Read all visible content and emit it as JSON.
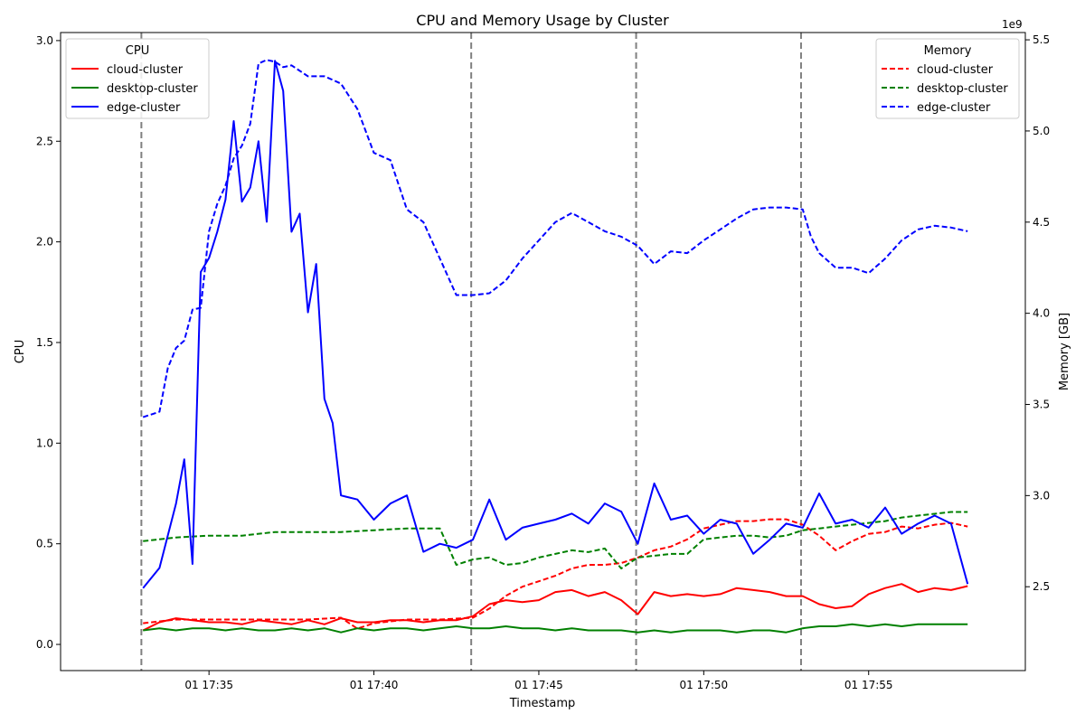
{
  "chart_data": {
    "type": "line",
    "title": "CPU and Memory Usage by Cluster",
    "xlabel": "Timestamp",
    "ylabel": "CPU",
    "y2label": "Memory [GB]",
    "y2_offset_text": "1e9",
    "x_start": "17:33",
    "x_end": "17:58:06",
    "xlim": [
      "17:30:30",
      "17:59:45"
    ],
    "x_ticks": [
      "01 17:35",
      "01 17:40",
      "01 17:45",
      "01 17:50",
      "01 17:55"
    ],
    "x_tick_minutes": [
      35,
      40,
      45,
      50,
      55
    ],
    "ylim": [
      -0.13,
      3.04
    ],
    "y_ticks": [
      0.0,
      0.5,
      1.0,
      1.5,
      2.0,
      2.5,
      3.0
    ],
    "y_tick_labels": [
      "0.0",
      "0.5",
      "1.0",
      "1.5",
      "2.0",
      "2.5",
      "3.0"
    ],
    "y2lim": [
      2.04,
      5.54
    ],
    "y2_ticks": [
      2.5,
      3.0,
      3.5,
      4.0,
      4.5,
      5.0,
      5.5
    ],
    "y2_tick_labels": [
      "2.5",
      "3.0",
      "3.5",
      "4.0",
      "4.5",
      "5.0",
      "5.5"
    ],
    "vlines_minutes": [
      32.95,
      42.95,
      47.95,
      52.95
    ],
    "legends": {
      "cpu": {
        "title": "CPU",
        "placement": "top-left",
        "style": "solid",
        "entries": [
          "cloud-cluster",
          "desktop-cluster",
          "edge-cluster"
        ]
      },
      "memory": {
        "title": "Memory",
        "placement": "top-right",
        "style": "dashed",
        "entries": [
          "cloud-cluster",
          "desktop-cluster",
          "edge-cluster"
        ]
      }
    },
    "colors": {
      "cloud-cluster": "#ff0000",
      "desktop-cluster": "#008000",
      "edge-cluster": "#0000ff"
    },
    "cpu_series": [
      {
        "name": "cloud-cluster",
        "x": [
          33.0,
          33.5,
          34.0,
          34.5,
          35.0,
          35.5,
          36.0,
          36.5,
          37.0,
          37.5,
          38.0,
          38.5,
          39.0,
          39.5,
          40.0,
          40.5,
          41.0,
          41.5,
          42.0,
          42.5,
          43.0,
          43.5,
          44.0,
          44.5,
          45.0,
          45.5,
          46.0,
          46.5,
          47.0,
          47.5,
          48.0,
          48.5,
          49.0,
          49.5,
          50.0,
          50.5,
          51.0,
          51.5,
          52.0,
          52.5,
          53.0,
          53.5,
          54.0,
          54.5,
          55.0,
          55.5,
          56.0,
          56.5,
          57.0,
          57.5,
          58.0
        ],
        "values": [
          0.07,
          0.11,
          0.13,
          0.12,
          0.11,
          0.11,
          0.1,
          0.12,
          0.11,
          0.1,
          0.12,
          0.1,
          0.13,
          0.11,
          0.11,
          0.12,
          0.12,
          0.11,
          0.12,
          0.12,
          0.14,
          0.2,
          0.22,
          0.21,
          0.22,
          0.26,
          0.27,
          0.24,
          0.26,
          0.22,
          0.15,
          0.26,
          0.24,
          0.25,
          0.24,
          0.25,
          0.28,
          0.27,
          0.26,
          0.24,
          0.24,
          0.2,
          0.18,
          0.19,
          0.25,
          0.28,
          0.3,
          0.26,
          0.28,
          0.27,
          0.29
        ]
      },
      {
        "name": "desktop-cluster",
        "x": [
          33.0,
          33.5,
          34.0,
          34.5,
          35.0,
          35.5,
          36.0,
          36.5,
          37.0,
          37.5,
          38.0,
          38.5,
          39.0,
          39.5,
          40.0,
          40.5,
          41.0,
          41.5,
          42.0,
          42.5,
          43.0,
          43.5,
          44.0,
          44.5,
          45.0,
          45.5,
          46.0,
          46.5,
          47.0,
          47.5,
          48.0,
          48.5,
          49.0,
          49.5,
          50.0,
          50.5,
          51.0,
          51.5,
          52.0,
          52.5,
          53.0,
          53.5,
          54.0,
          54.5,
          55.0,
          55.5,
          56.0,
          56.5,
          57.0,
          57.5,
          58.0
        ],
        "values": [
          0.07,
          0.08,
          0.07,
          0.08,
          0.08,
          0.07,
          0.08,
          0.07,
          0.07,
          0.08,
          0.07,
          0.08,
          0.06,
          0.08,
          0.07,
          0.08,
          0.08,
          0.07,
          0.08,
          0.09,
          0.08,
          0.08,
          0.09,
          0.08,
          0.08,
          0.07,
          0.08,
          0.07,
          0.07,
          0.07,
          0.06,
          0.07,
          0.06,
          0.07,
          0.07,
          0.07,
          0.06,
          0.07,
          0.07,
          0.06,
          0.08,
          0.09,
          0.09,
          0.1,
          0.09,
          0.1,
          0.09,
          0.1,
          0.1,
          0.1,
          0.1
        ]
      },
      {
        "name": "edge-cluster",
        "x": [
          33.0,
          33.5,
          34.0,
          34.25,
          34.5,
          34.75,
          35.0,
          35.25,
          35.5,
          35.75,
          36.0,
          36.25,
          36.5,
          36.75,
          37.0,
          37.25,
          37.5,
          37.75,
          38.0,
          38.25,
          38.5,
          38.75,
          39.0,
          39.5,
          40.0,
          40.5,
          41.0,
          41.5,
          42.0,
          42.5,
          43.0,
          43.5,
          44.0,
          44.5,
          45.0,
          45.5,
          46.0,
          46.5,
          47.0,
          47.5,
          48.0,
          48.5,
          49.0,
          49.5,
          50.0,
          50.5,
          51.0,
          51.5,
          52.0,
          52.5,
          53.0,
          53.5,
          54.0,
          54.5,
          55.0,
          55.5,
          56.0,
          56.5,
          57.0,
          57.5,
          58.0
        ],
        "values": [
          0.28,
          0.38,
          0.7,
          0.92,
          0.4,
          1.85,
          1.92,
          2.05,
          2.21,
          2.6,
          2.2,
          2.27,
          2.5,
          2.1,
          2.9,
          2.75,
          2.05,
          2.14,
          1.65,
          1.89,
          1.22,
          1.1,
          0.74,
          0.72,
          0.62,
          0.7,
          0.74,
          0.46,
          0.5,
          0.48,
          0.52,
          0.72,
          0.52,
          0.58,
          0.6,
          0.62,
          0.65,
          0.6,
          0.7,
          0.66,
          0.5,
          0.8,
          0.62,
          0.64,
          0.55,
          0.62,
          0.6,
          0.45,
          0.52,
          0.6,
          0.58,
          0.75,
          0.6,
          0.62,
          0.58,
          0.68,
          0.55,
          0.6,
          0.64,
          0.6,
          0.3
        ]
      }
    ],
    "memory_series_gb": [
      {
        "name": "cloud-cluster",
        "x": [
          33.0,
          34.0,
          35.0,
          36.0,
          37.0,
          38.0,
          39.0,
          39.5,
          40.0,
          41.0,
          42.0,
          43.0,
          43.5,
          44.0,
          44.5,
          45.0,
          45.5,
          46.0,
          46.5,
          47.0,
          47.5,
          48.0,
          48.5,
          49.0,
          49.5,
          50.0,
          50.5,
          51.0,
          51.5,
          52.0,
          52.5,
          53.0,
          53.5,
          54.0,
          54.5,
          55.0,
          55.5,
          56.0,
          56.5,
          57.0,
          57.5,
          58.0
        ],
        "values": [
          2.3,
          2.32,
          2.32,
          2.32,
          2.32,
          2.32,
          2.33,
          2.27,
          2.3,
          2.32,
          2.32,
          2.33,
          2.38,
          2.45,
          2.5,
          2.53,
          2.56,
          2.6,
          2.62,
          2.62,
          2.63,
          2.66,
          2.7,
          2.72,
          2.76,
          2.82,
          2.84,
          2.86,
          2.86,
          2.87,
          2.87,
          2.84,
          2.78,
          2.7,
          2.75,
          2.79,
          2.8,
          2.83,
          2.82,
          2.84,
          2.85,
          2.83
        ]
      },
      {
        "name": "desktop-cluster",
        "x": [
          33.0,
          34.0,
          35.0,
          36.0,
          37.0,
          38.0,
          39.0,
          40.0,
          41.0,
          42.0,
          42.5,
          43.0,
          43.5,
          44.0,
          44.5,
          45.0,
          45.5,
          46.0,
          46.5,
          47.0,
          47.5,
          48.0,
          48.5,
          49.0,
          49.5,
          50.0,
          50.5,
          51.0,
          51.5,
          52.0,
          52.5,
          53.0,
          53.5,
          54.0,
          54.5,
          55.0,
          55.5,
          56.0,
          56.5,
          57.0,
          57.5,
          58.0
        ],
        "values": [
          2.75,
          2.77,
          2.78,
          2.78,
          2.8,
          2.8,
          2.8,
          2.81,
          2.82,
          2.82,
          2.62,
          2.65,
          2.66,
          2.62,
          2.63,
          2.66,
          2.68,
          2.7,
          2.69,
          2.71,
          2.6,
          2.66,
          2.67,
          2.68,
          2.68,
          2.76,
          2.77,
          2.78,
          2.78,
          2.77,
          2.78,
          2.81,
          2.82,
          2.83,
          2.84,
          2.85,
          2.86,
          2.88,
          2.89,
          2.9,
          2.91,
          2.91
        ]
      },
      {
        "name": "edge-cluster",
        "x": [
          33.0,
          33.5,
          33.75,
          34.0,
          34.25,
          34.5,
          34.75,
          35.0,
          35.25,
          35.5,
          35.75,
          36.0,
          36.25,
          36.5,
          36.75,
          37.0,
          37.25,
          37.5,
          38.0,
          38.5,
          39.0,
          39.5,
          40.0,
          40.5,
          41.0,
          41.5,
          42.0,
          42.5,
          43.0,
          43.5,
          44.0,
          44.5,
          45.0,
          45.5,
          46.0,
          46.5,
          47.0,
          47.5,
          48.0,
          48.5,
          49.0,
          49.5,
          50.0,
          50.5,
          51.0,
          51.5,
          52.0,
          52.5,
          53.0,
          53.25,
          53.5,
          54.0,
          54.5,
          55.0,
          55.5,
          56.0,
          56.5,
          57.0,
          57.5,
          58.0
        ],
        "values": [
          3.43,
          3.46,
          3.7,
          3.81,
          3.85,
          4.02,
          4.03,
          4.45,
          4.6,
          4.7,
          4.85,
          4.92,
          5.04,
          5.37,
          5.39,
          5.38,
          5.35,
          5.36,
          5.3,
          5.3,
          5.26,
          5.12,
          4.88,
          4.84,
          4.57,
          4.5,
          4.3,
          4.1,
          4.1,
          4.11,
          4.18,
          4.3,
          4.4,
          4.5,
          4.55,
          4.5,
          4.45,
          4.42,
          4.37,
          4.27,
          4.34,
          4.33,
          4.4,
          4.46,
          4.52,
          4.57,
          4.58,
          4.58,
          4.57,
          4.42,
          4.33,
          4.25,
          4.25,
          4.22,
          4.3,
          4.4,
          4.46,
          4.48,
          4.47,
          4.45
        ]
      }
    ]
  }
}
